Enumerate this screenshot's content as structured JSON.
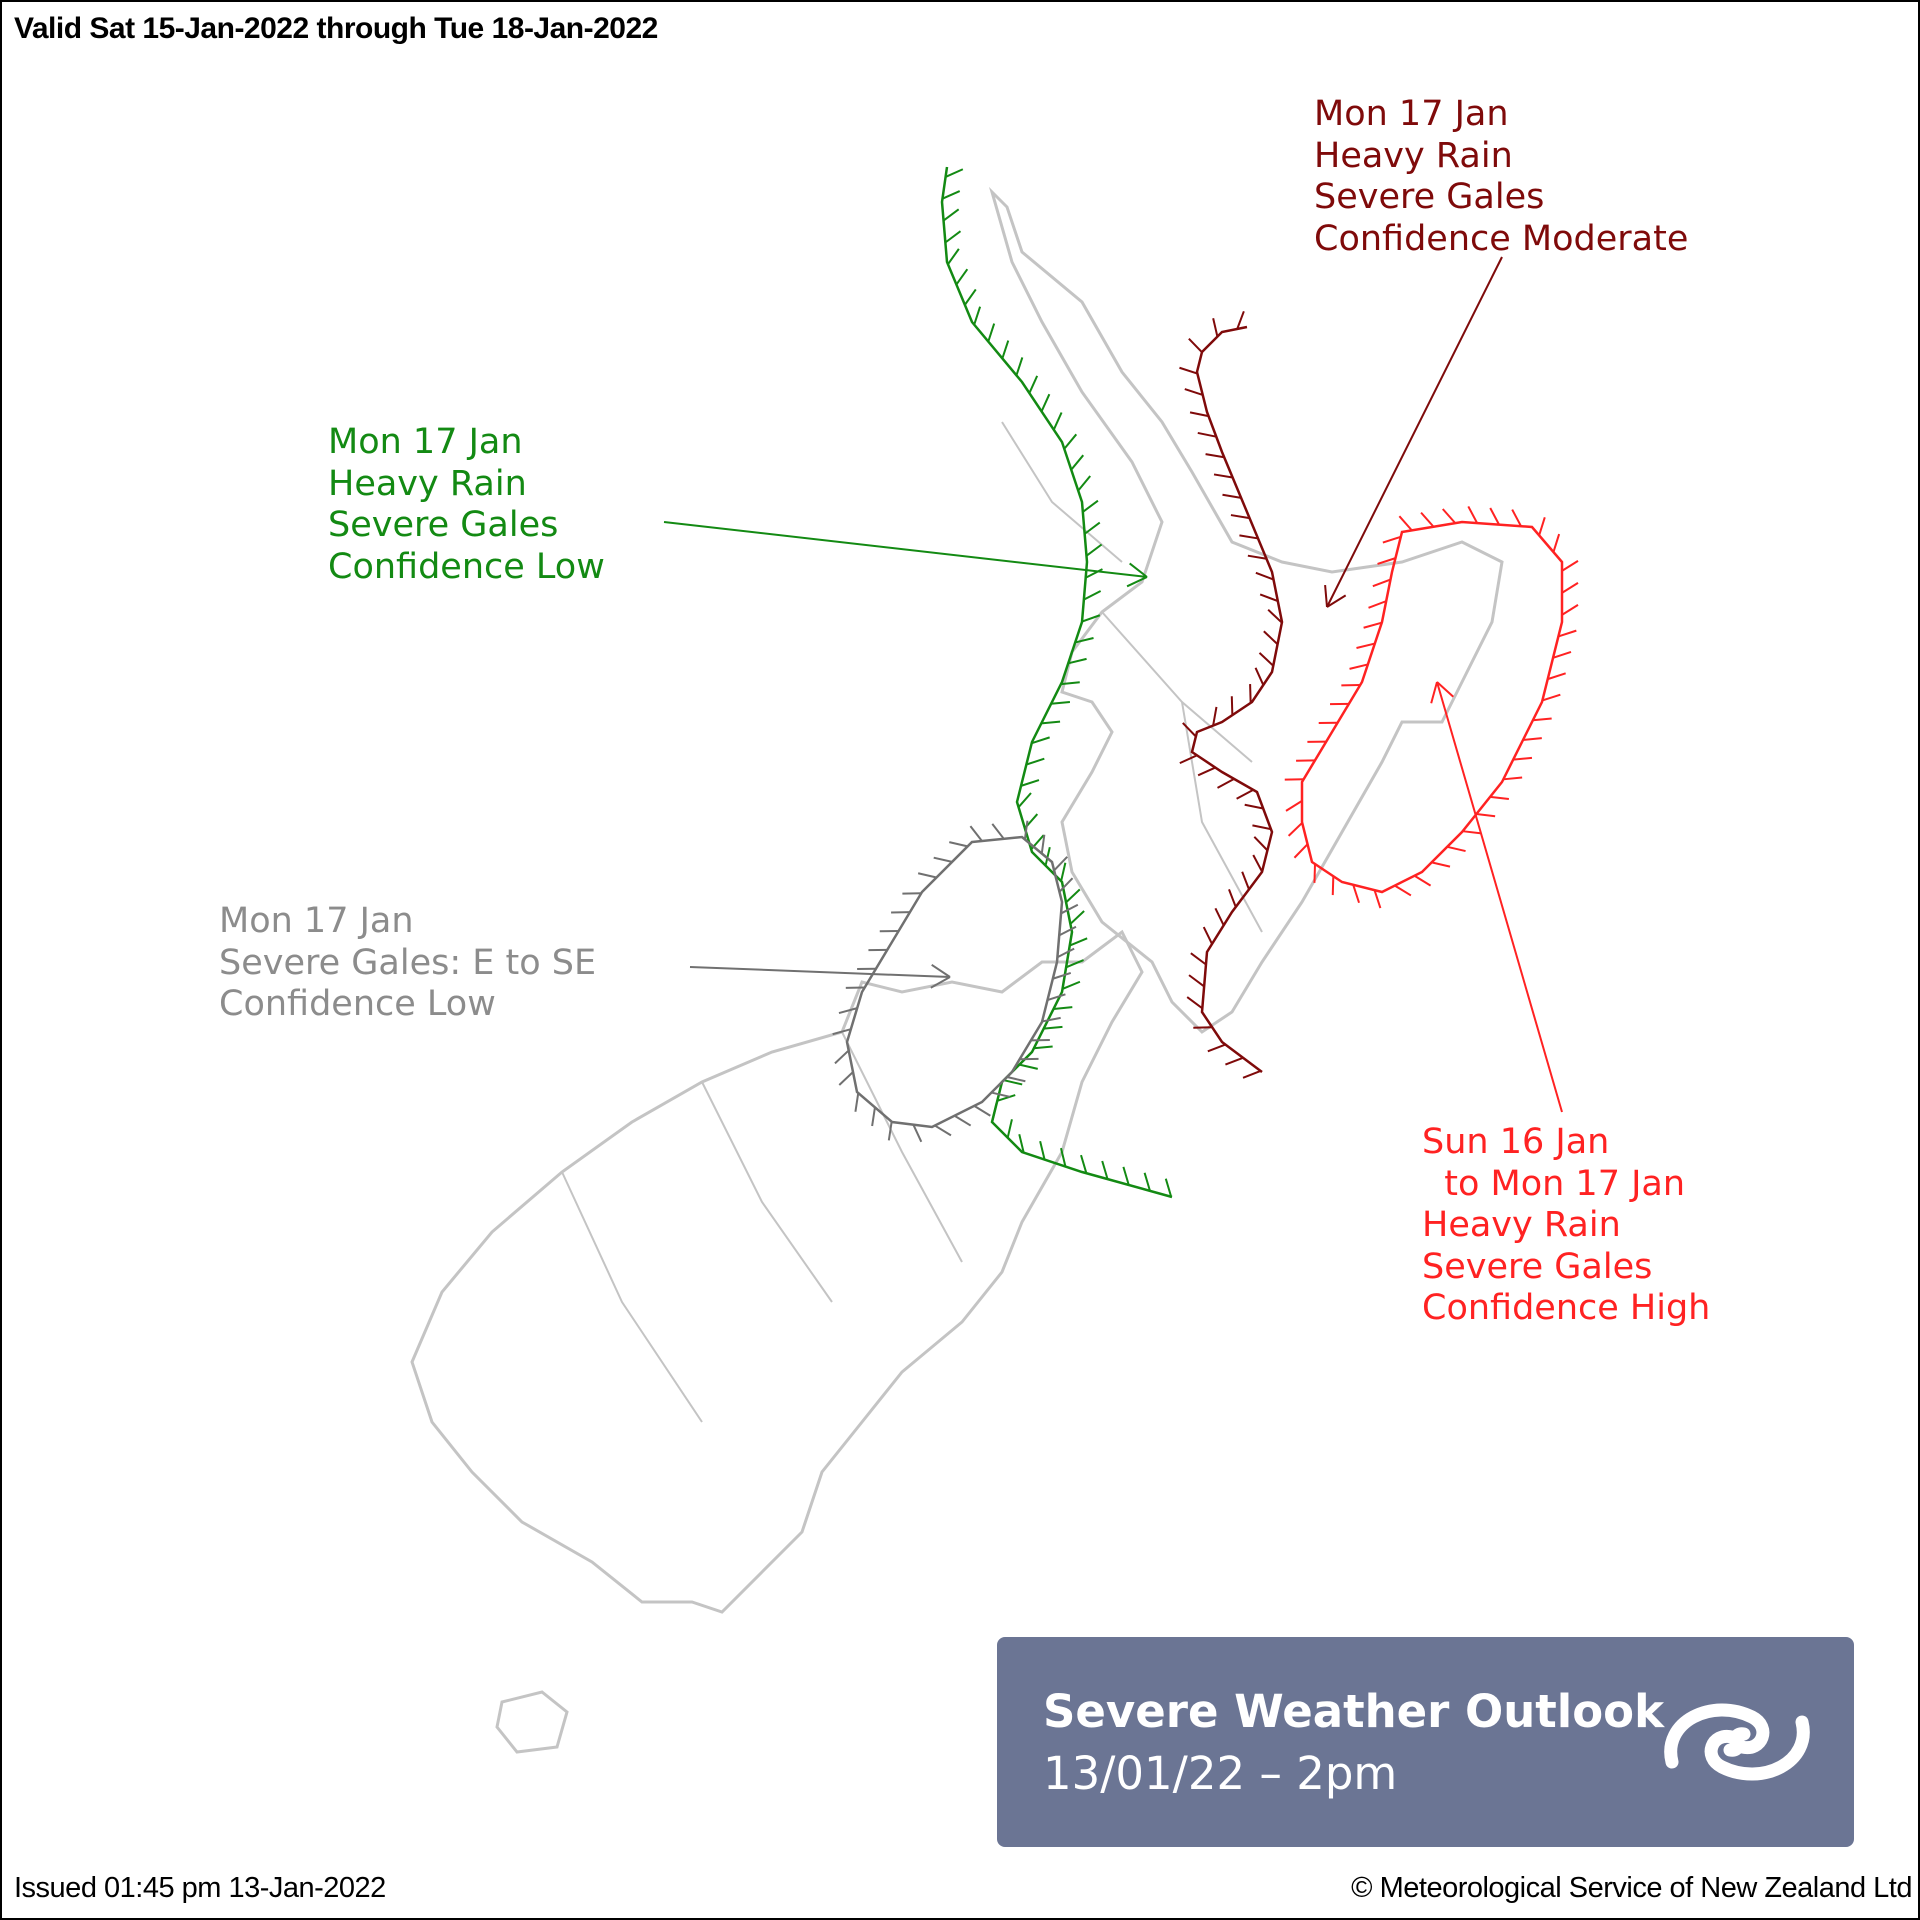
{
  "header": {
    "valid_text": "Valid Sat 15-Jan-2022 through Tue 18-Jan-2022"
  },
  "footer": {
    "issued_text": "Issued 01:45 pm 13-Jan-2022",
    "copyright_text": "© Meteorological Service of New Zealand Ltd"
  },
  "colors": {
    "green": "#138a13",
    "dark_red": "#7f0a0a",
    "red": "#ff2222",
    "gray_line": "#707070",
    "gray_text": "#8c8c8c",
    "land": "#c4c4c4",
    "box": "#6b7594"
  },
  "annotations": [
    {
      "id": "green",
      "lines": [
        "Mon 17 Jan",
        "Heavy Rain",
        "Severe Gales",
        "Confidence Low"
      ]
    },
    {
      "id": "dark-red",
      "lines": [
        "Mon 17 Jan",
        "Heavy Rain",
        "Severe Gales",
        "Confidence Moderate"
      ]
    },
    {
      "id": "gray",
      "lines": [
        "Mon 17 Jan",
        "Severe Gales: E to SE",
        "Confidence Low"
      ]
    },
    {
      "id": "red",
      "lines": [
        "Sun 16 Jan",
        "  to Mon 17 Jan",
        "Heavy Rain",
        "Severe Gales",
        "Confidence High"
      ]
    }
  ],
  "outlook_box": {
    "title": "Severe Weather Outlook",
    "subtitle": "13/01/22 – 2pm",
    "logo_icon": "metservice-koru-logo"
  }
}
